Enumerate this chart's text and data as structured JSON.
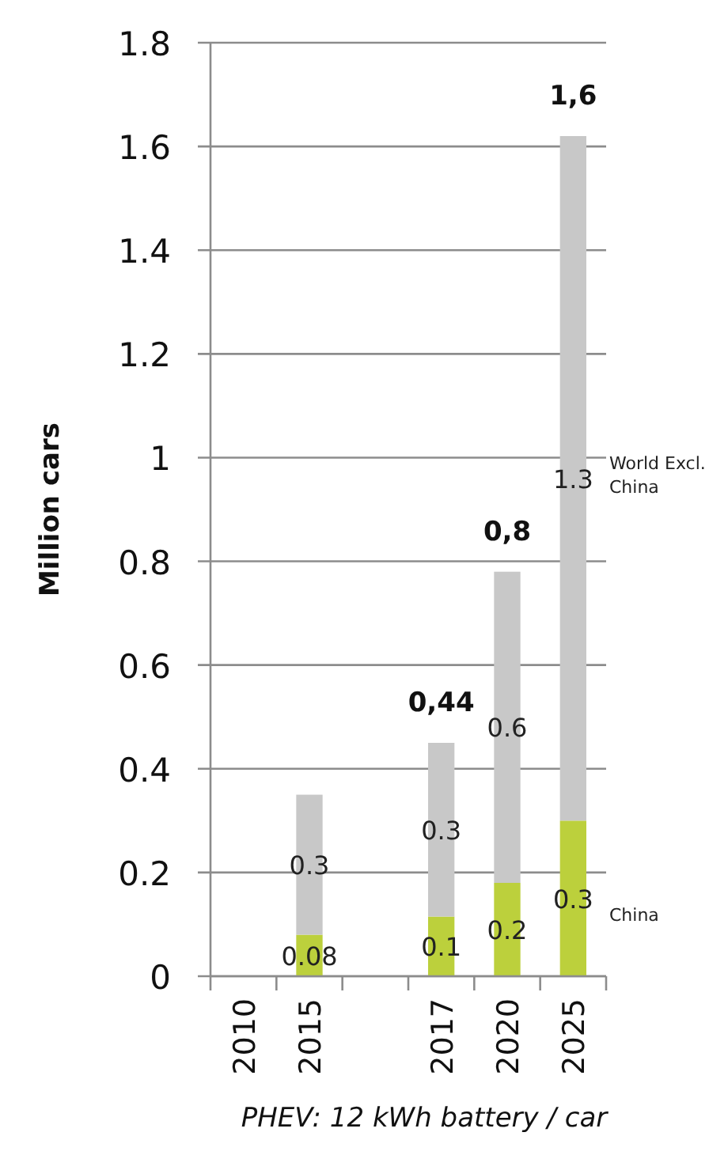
{
  "chart_data": {
    "type": "bar",
    "stacked": true,
    "xlabel": "PHEV: 12 kWh battery / car",
    "ylabel": "Million cars",
    "categories": [
      "2010",
      "2015",
      null,
      "2017",
      "2020",
      "2025"
    ],
    "series": [
      {
        "name": "China",
        "color": "#bcd03c",
        "values": [
          null,
          0.08,
          null,
          0.115,
          0.18,
          0.3
        ],
        "value_labels": [
          null,
          "0.08",
          null,
          "0.1",
          "0.2",
          "0.3"
        ]
      },
      {
        "name": "World Excl. China",
        "color": "#c8c8c8",
        "values": [
          null,
          0.27,
          null,
          0.335,
          0.6,
          1.32
        ],
        "value_labels": [
          null,
          "0.3",
          null,
          "0.3",
          "0.6",
          "1.3"
        ]
      }
    ],
    "totals": [
      null,
      null,
      null,
      "0,44",
      "0,8",
      "1,6"
    ],
    "ylim": [
      0,
      1.8
    ],
    "yticks": [
      0,
      0.2,
      0.4,
      0.6,
      0.8,
      1,
      1.2,
      1.4,
      1.6,
      1.8
    ],
    "grid": "y",
    "legend": false
  }
}
